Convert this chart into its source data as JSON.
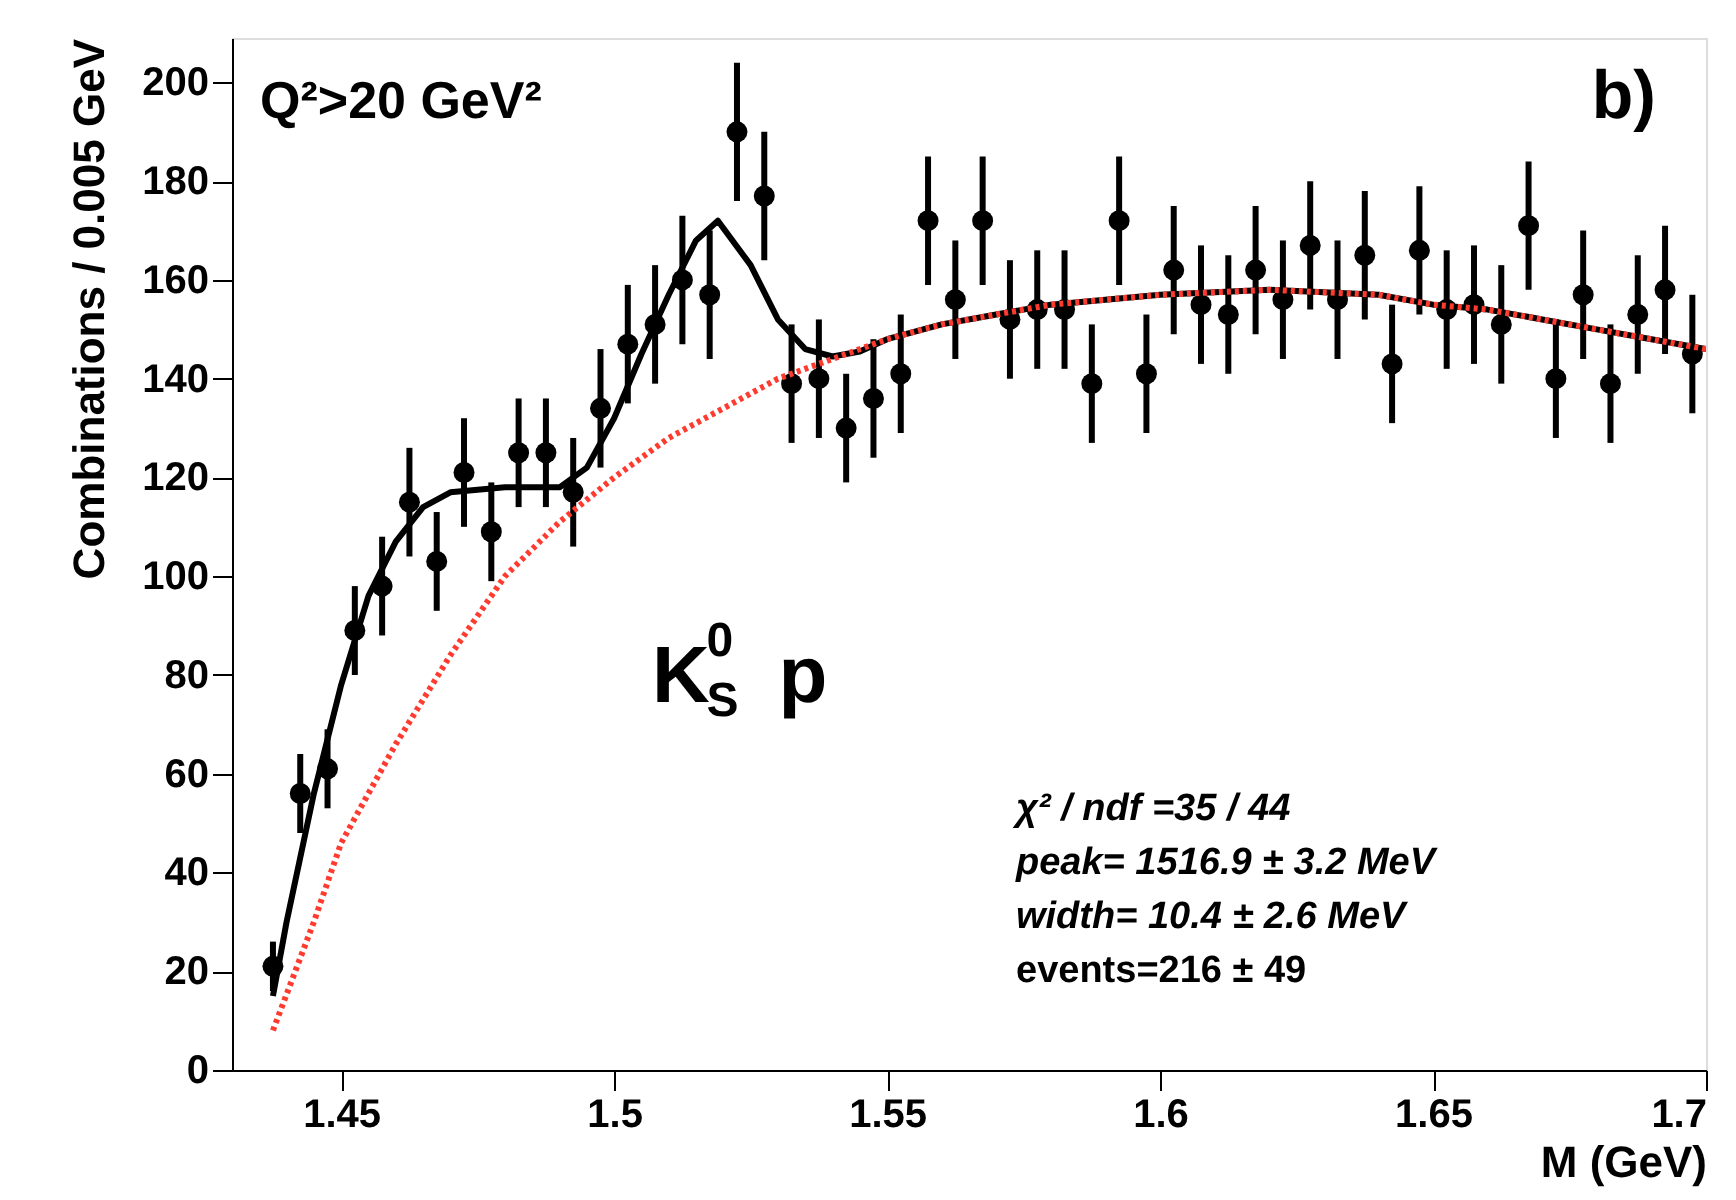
{
  "chart_data": {
    "type": "scatter",
    "xlabel": "M (GeV)",
    "ylabel": "Combinations / 0.005 GeV",
    "xlim": [
      1.43,
      1.7
    ],
    "ylim": [
      0,
      209
    ],
    "xticks": [
      1.45,
      1.5,
      1.55,
      1.6,
      1.65,
      1.7
    ],
    "yticks": [
      0,
      20,
      40,
      60,
      80,
      100,
      120,
      140,
      160,
      180,
      200
    ],
    "grid": false,
    "annotations": [
      "Q²>20 GeV²",
      "b)",
      "K$^{0}$$_{S}$ p",
      "χ² / ndf =35 / 44",
      "peak= 1516.9 ± 3.2 MeV",
      "width=   10.4 ± 2.6 MeV",
      "events=216 ± 49"
    ],
    "series": [
      {
        "color": "#000000",
        "marker": "circle",
        "x": [
          1.4375,
          1.4425,
          1.4475,
          1.4525,
          1.4575,
          1.4625,
          1.4675,
          1.4725,
          1.4775,
          1.4825,
          1.4875,
          1.4925,
          1.4975,
          1.5025,
          1.5075,
          1.5125,
          1.5175,
          1.5225,
          1.5275,
          1.5325,
          1.5375,
          1.5425,
          1.5475,
          1.5525,
          1.5575,
          1.5625,
          1.5675,
          1.5725,
          1.5775,
          1.5825,
          1.5875,
          1.5925,
          1.5975,
          1.6025,
          1.6075,
          1.6125,
          1.6175,
          1.6225,
          1.6275,
          1.6325,
          1.6375,
          1.6425,
          1.6475,
          1.6525,
          1.6575,
          1.6625,
          1.6675,
          1.6725,
          1.6775,
          1.6825,
          1.6875,
          1.6925,
          1.6975
        ],
        "values": [
          21,
          56,
          61,
          89,
          98,
          115,
          103,
          121,
          109,
          125,
          125,
          117,
          134,
          147,
          151,
          160,
          157,
          190,
          177,
          139,
          140,
          130,
          136,
          141,
          172,
          156,
          172,
          152,
          154,
          154,
          139,
          172,
          141,
          162,
          155,
          153,
          162,
          156,
          167,
          156,
          165,
          143,
          166,
          154,
          155,
          151,
          171,
          140,
          157,
          139,
          153,
          158,
          145
        ],
        "errors": [
          5,
          8,
          8,
          9,
          10,
          11,
          10,
          11,
          10,
          11,
          11,
          11,
          12,
          12,
          12,
          13,
          13,
          14,
          13,
          12,
          12,
          11,
          12,
          12,
          13,
          12,
          13,
          12,
          12,
          12,
          12,
          13,
          12,
          13,
          12,
          12,
          13,
          12,
          13,
          12,
          13,
          12,
          13,
          12,
          12,
          12,
          13,
          12,
          13,
          12,
          12,
          13,
          12
        ]
      },
      {
        "type": "line",
        "color": "#000000",
        "line_style": "solid",
        "x": [
          1.4375,
          1.44,
          1.445,
          1.45,
          1.455,
          1.46,
          1.465,
          1.47,
          1.48,
          1.49,
          1.495,
          1.5,
          1.505,
          1.51,
          1.515,
          1.519,
          1.525,
          1.53,
          1.535,
          1.54,
          1.545,
          1.55,
          1.56,
          1.57,
          1.58,
          1.59,
          1.6,
          1.61,
          1.62,
          1.63,
          1.64,
          1.65,
          1.66,
          1.67,
          1.68,
          1.69,
          1.7
        ],
        "values": [
          15,
          30,
          56,
          78,
          96,
          107,
          114,
          117,
          118,
          118,
          122,
          132,
          145,
          157,
          168,
          172,
          163,
          152,
          146,
          144.5,
          145.5,
          148,
          151,
          153,
          155,
          156,
          157,
          157.5,
          158,
          157.5,
          157,
          155,
          154,
          152,
          150,
          148,
          146
        ]
      },
      {
        "type": "line",
        "color": "#ff3b30",
        "line_style": "dotted",
        "x": [
          1.4375,
          1.445,
          1.45,
          1.46,
          1.47,
          1.48,
          1.49,
          1.5,
          1.51,
          1.52,
          1.53,
          1.54,
          1.55,
          1.56,
          1.57,
          1.58,
          1.59,
          1.6,
          1.61,
          1.62,
          1.63,
          1.64,
          1.65,
          1.66,
          1.67,
          1.68,
          1.69,
          1.7
        ],
        "values": [
          8,
          30,
          46,
          66,
          84,
          100,
          111,
          120,
          128,
          134,
          140,
          144,
          148,
          151,
          153,
          155,
          156,
          157,
          157.5,
          158,
          157.5,
          157,
          155,
          154,
          152,
          150,
          148,
          146
        ]
      }
    ]
  }
}
